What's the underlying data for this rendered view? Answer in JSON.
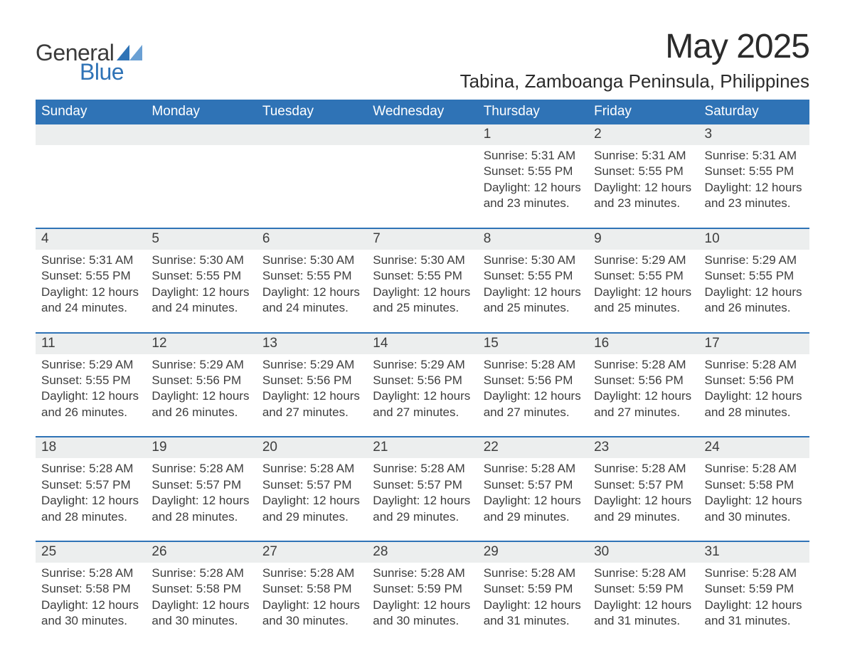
{
  "brand": {
    "word1": "General",
    "word2": "Blue"
  },
  "title": "May 2025",
  "location": "Tabina, Zamboanga Peninsula, Philippines",
  "colors": {
    "header_bg": "#2f73b6",
    "header_text": "#ffffff",
    "daynum_bg": "#eceeee",
    "text": "#3d3d3d",
    "rule": "#2f73b6",
    "page_bg": "#ffffff",
    "logo_gray": "#3b3b3b",
    "logo_blue": "#2f73b6"
  },
  "typography": {
    "title_fontsize": 48,
    "location_fontsize": 26,
    "dow_fontsize": 19,
    "daynum_fontsize": 19,
    "detail_fontsize": 17
  },
  "day_names": [
    "Sunday",
    "Monday",
    "Tuesday",
    "Wednesday",
    "Thursday",
    "Friday",
    "Saturday"
  ],
  "weeks": [
    [
      null,
      null,
      null,
      null,
      {
        "n": "1",
        "sunrise": "5:31 AM",
        "sunset": "5:55 PM",
        "daylight": "12 hours and 23 minutes."
      },
      {
        "n": "2",
        "sunrise": "5:31 AM",
        "sunset": "5:55 PM",
        "daylight": "12 hours and 23 minutes."
      },
      {
        "n": "3",
        "sunrise": "5:31 AM",
        "sunset": "5:55 PM",
        "daylight": "12 hours and 23 minutes."
      }
    ],
    [
      {
        "n": "4",
        "sunrise": "5:31 AM",
        "sunset": "5:55 PM",
        "daylight": "12 hours and 24 minutes."
      },
      {
        "n": "5",
        "sunrise": "5:30 AM",
        "sunset": "5:55 PM",
        "daylight": "12 hours and 24 minutes."
      },
      {
        "n": "6",
        "sunrise": "5:30 AM",
        "sunset": "5:55 PM",
        "daylight": "12 hours and 24 minutes."
      },
      {
        "n": "7",
        "sunrise": "5:30 AM",
        "sunset": "5:55 PM",
        "daylight": "12 hours and 25 minutes."
      },
      {
        "n": "8",
        "sunrise": "5:30 AM",
        "sunset": "5:55 PM",
        "daylight": "12 hours and 25 minutes."
      },
      {
        "n": "9",
        "sunrise": "5:29 AM",
        "sunset": "5:55 PM",
        "daylight": "12 hours and 25 minutes."
      },
      {
        "n": "10",
        "sunrise": "5:29 AM",
        "sunset": "5:55 PM",
        "daylight": "12 hours and 26 minutes."
      }
    ],
    [
      {
        "n": "11",
        "sunrise": "5:29 AM",
        "sunset": "5:55 PM",
        "daylight": "12 hours and 26 minutes."
      },
      {
        "n": "12",
        "sunrise": "5:29 AM",
        "sunset": "5:56 PM",
        "daylight": "12 hours and 26 minutes."
      },
      {
        "n": "13",
        "sunrise": "5:29 AM",
        "sunset": "5:56 PM",
        "daylight": "12 hours and 27 minutes."
      },
      {
        "n": "14",
        "sunrise": "5:29 AM",
        "sunset": "5:56 PM",
        "daylight": "12 hours and 27 minutes."
      },
      {
        "n": "15",
        "sunrise": "5:28 AM",
        "sunset": "5:56 PM",
        "daylight": "12 hours and 27 minutes."
      },
      {
        "n": "16",
        "sunrise": "5:28 AM",
        "sunset": "5:56 PM",
        "daylight": "12 hours and 27 minutes."
      },
      {
        "n": "17",
        "sunrise": "5:28 AM",
        "sunset": "5:56 PM",
        "daylight": "12 hours and 28 minutes."
      }
    ],
    [
      {
        "n": "18",
        "sunrise": "5:28 AM",
        "sunset": "5:57 PM",
        "daylight": "12 hours and 28 minutes."
      },
      {
        "n": "19",
        "sunrise": "5:28 AM",
        "sunset": "5:57 PM",
        "daylight": "12 hours and 28 minutes."
      },
      {
        "n": "20",
        "sunrise": "5:28 AM",
        "sunset": "5:57 PM",
        "daylight": "12 hours and 29 minutes."
      },
      {
        "n": "21",
        "sunrise": "5:28 AM",
        "sunset": "5:57 PM",
        "daylight": "12 hours and 29 minutes."
      },
      {
        "n": "22",
        "sunrise": "5:28 AM",
        "sunset": "5:57 PM",
        "daylight": "12 hours and 29 minutes."
      },
      {
        "n": "23",
        "sunrise": "5:28 AM",
        "sunset": "5:57 PM",
        "daylight": "12 hours and 29 minutes."
      },
      {
        "n": "24",
        "sunrise": "5:28 AM",
        "sunset": "5:58 PM",
        "daylight": "12 hours and 30 minutes."
      }
    ],
    [
      {
        "n": "25",
        "sunrise": "5:28 AM",
        "sunset": "5:58 PM",
        "daylight": "12 hours and 30 minutes."
      },
      {
        "n": "26",
        "sunrise": "5:28 AM",
        "sunset": "5:58 PM",
        "daylight": "12 hours and 30 minutes."
      },
      {
        "n": "27",
        "sunrise": "5:28 AM",
        "sunset": "5:58 PM",
        "daylight": "12 hours and 30 minutes."
      },
      {
        "n": "28",
        "sunrise": "5:28 AM",
        "sunset": "5:59 PM",
        "daylight": "12 hours and 30 minutes."
      },
      {
        "n": "29",
        "sunrise": "5:28 AM",
        "sunset": "5:59 PM",
        "daylight": "12 hours and 31 minutes."
      },
      {
        "n": "30",
        "sunrise": "5:28 AM",
        "sunset": "5:59 PM",
        "daylight": "12 hours and 31 minutes."
      },
      {
        "n": "31",
        "sunrise": "5:28 AM",
        "sunset": "5:59 PM",
        "daylight": "12 hours and 31 minutes."
      }
    ]
  ],
  "labels": {
    "sunrise": "Sunrise: ",
    "sunset": "Sunset: ",
    "daylight": "Daylight: "
  }
}
